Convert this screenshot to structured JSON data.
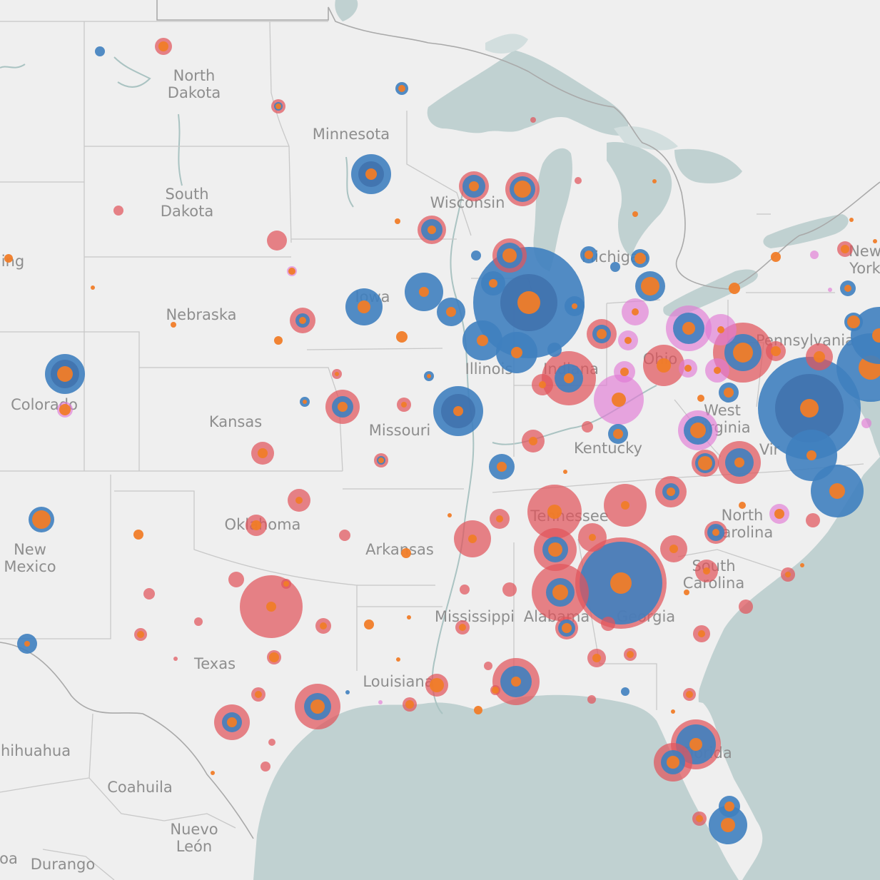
{
  "colors": {
    "land": "#efefef",
    "water": "#c0d1d1",
    "lake_light": "#d2dede",
    "blue": "#3f7fbf",
    "red": "#e0555c",
    "orange": "#f07c28",
    "pink": "#e07ad4"
  },
  "labels": {
    "states": [
      {
        "name": "North Dakota",
        "lines": [
          "North",
          "Dakota"
        ]
      },
      {
        "name": "South Dakota",
        "lines": [
          "South",
          "Dakota"
        ]
      },
      {
        "name": "Minnesota",
        "lines": [
          "Minnesota"
        ]
      },
      {
        "name": "Wisconsin",
        "lines": [
          "Wisconsin"
        ]
      },
      {
        "name": "Michigan",
        "lines": [
          "Michigan"
        ]
      },
      {
        "name": "Wyoming",
        "lines": [
          "ing"
        ]
      },
      {
        "name": "New York",
        "lines": [
          "New",
          "York"
        ]
      },
      {
        "name": "Iowa",
        "lines": [
          "Iowa"
        ]
      },
      {
        "name": "Nebraska",
        "lines": [
          "Nebraska"
        ]
      },
      {
        "name": "Pennsylvania",
        "lines": [
          "Pennsylvania"
        ]
      },
      {
        "name": "Ohio",
        "lines": [
          "Ohio"
        ]
      },
      {
        "name": "Illinois",
        "lines": [
          "Illinois"
        ]
      },
      {
        "name": "Indiana",
        "lines": [
          "Indiana"
        ]
      },
      {
        "name": "Colorado",
        "lines": [
          "Colorado"
        ]
      },
      {
        "name": "Kansas",
        "lines": [
          "Kansas"
        ]
      },
      {
        "name": "Missouri",
        "lines": [
          "Missouri"
        ]
      },
      {
        "name": "West Virginia",
        "lines": [
          "West",
          "Virginia"
        ]
      },
      {
        "name": "Kentucky",
        "lines": [
          "Kentucky"
        ]
      },
      {
        "name": "Virginia",
        "lines": [
          "Vir"
        ]
      },
      {
        "name": "Tennessee",
        "lines": [
          "Tennessee"
        ]
      },
      {
        "name": "North Carolina",
        "lines": [
          "North",
          "Carolina"
        ]
      },
      {
        "name": "Oklahoma",
        "lines": [
          "Oklahoma"
        ]
      },
      {
        "name": "New Mexico",
        "lines": [
          "New",
          "Mexico"
        ]
      },
      {
        "name": "Arkansas",
        "lines": [
          "Arkansas"
        ]
      },
      {
        "name": "South Carolina",
        "lines": [
          "South",
          "Carolina"
        ]
      },
      {
        "name": "Mississippi",
        "lines": [
          "Mississippi"
        ]
      },
      {
        "name": "Alabama",
        "lines": [
          "Alabama"
        ]
      },
      {
        "name": "Georgia",
        "lines": [
          "Georgia"
        ]
      },
      {
        "name": "Texas",
        "lines": [
          "Texas"
        ]
      },
      {
        "name": "Louisiana",
        "lines": [
          "Louisiana"
        ]
      },
      {
        "name": "Florida",
        "lines": [
          "Florida"
        ]
      }
    ],
    "mexico": [
      {
        "name": "Chihuahua",
        "lines": [
          "hihuahua"
        ]
      },
      {
        "name": "Coahuila",
        "lines": [
          "Coahuila"
        ]
      },
      {
        "name": "Nuevo León",
        "lines": [
          "Nuevo",
          "León"
        ]
      },
      {
        "name": "Sinaloa",
        "lines": [
          "oa"
        ]
      },
      {
        "name": "Durango",
        "lines": [
          "Durango"
        ]
      }
    ]
  },
  "legend_hint": "Bubble layers: outer ring category (blue / red / pink), inner core (orange)"
}
